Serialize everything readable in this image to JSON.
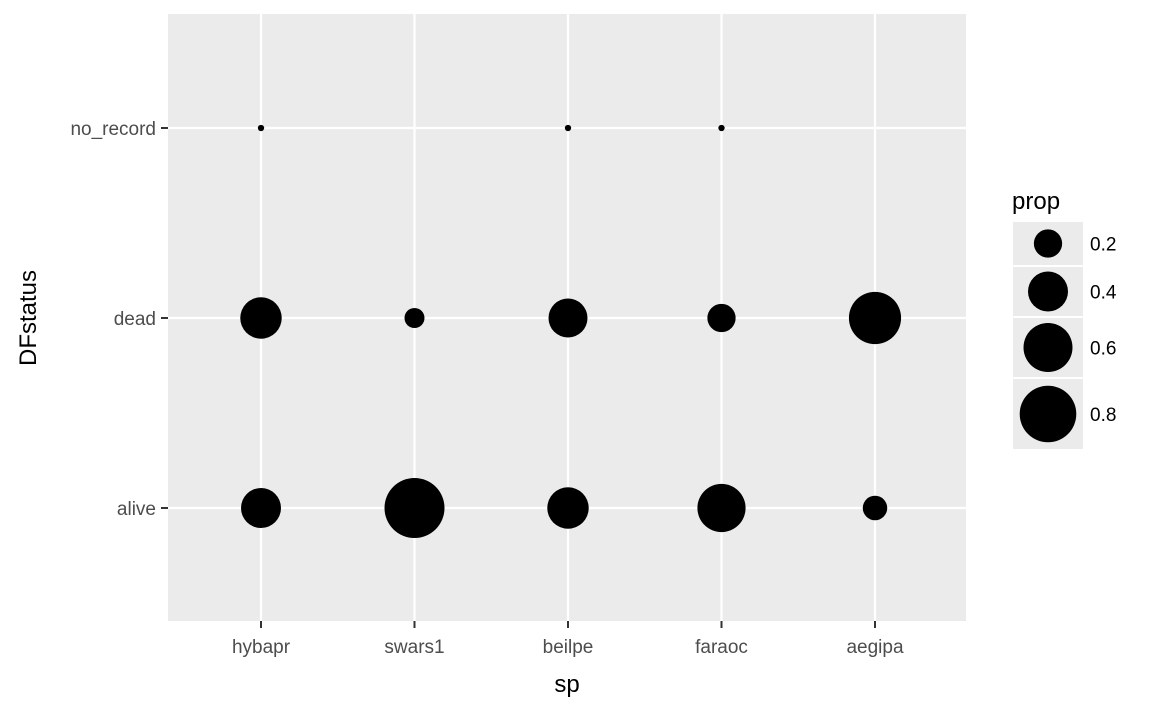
{
  "chart_data": {
    "type": "scatter",
    "title": "",
    "xlabel": "sp",
    "ylabel": "DFstatus",
    "x_categories": [
      "hybapr",
      "swars1",
      "beilpe",
      "faraoc",
      "aegipa"
    ],
    "y_categories": [
      "alive",
      "dead",
      "no_record"
    ],
    "size_variable": "prop",
    "points": [
      {
        "x": "hybapr",
        "y": "alive",
        "prop": 0.4
      },
      {
        "x": "hybapr",
        "y": "dead",
        "prop": 0.43
      },
      {
        "x": "hybapr",
        "y": "no_record",
        "prop": 0.01
      },
      {
        "x": "swars1",
        "y": "alive",
        "prop": 0.9
      },
      {
        "x": "swars1",
        "y": "dead",
        "prop": 0.1
      },
      {
        "x": "beilpe",
        "y": "alive",
        "prop": 0.43
      },
      {
        "x": "beilpe",
        "y": "dead",
        "prop": 0.38
      },
      {
        "x": "beilpe",
        "y": "no_record",
        "prop": 0.01
      },
      {
        "x": "faraoc",
        "y": "alive",
        "prop": 0.58
      },
      {
        "x": "faraoc",
        "y": "dead",
        "prop": 0.2
      },
      {
        "x": "faraoc",
        "y": "no_record",
        "prop": 0.01
      },
      {
        "x": "aegipa",
        "y": "alive",
        "prop": 0.15
      },
      {
        "x": "aegipa",
        "y": "dead",
        "prop": 0.68
      }
    ],
    "legend": {
      "title": "prop",
      "placement": "right",
      "entries": [
        {
          "label": "0.2",
          "value": 0.2
        },
        {
          "label": "0.4",
          "value": 0.4
        },
        {
          "label": "0.6",
          "value": 0.6
        },
        {
          "label": "0.8",
          "value": 0.8
        }
      ]
    },
    "grid": true,
    "colors": {
      "panel": "#ebebeb",
      "grid": "#ffffff",
      "point": "#000000",
      "tick_text": "#4d4d4d",
      "tick_mark": "#333333"
    }
  }
}
